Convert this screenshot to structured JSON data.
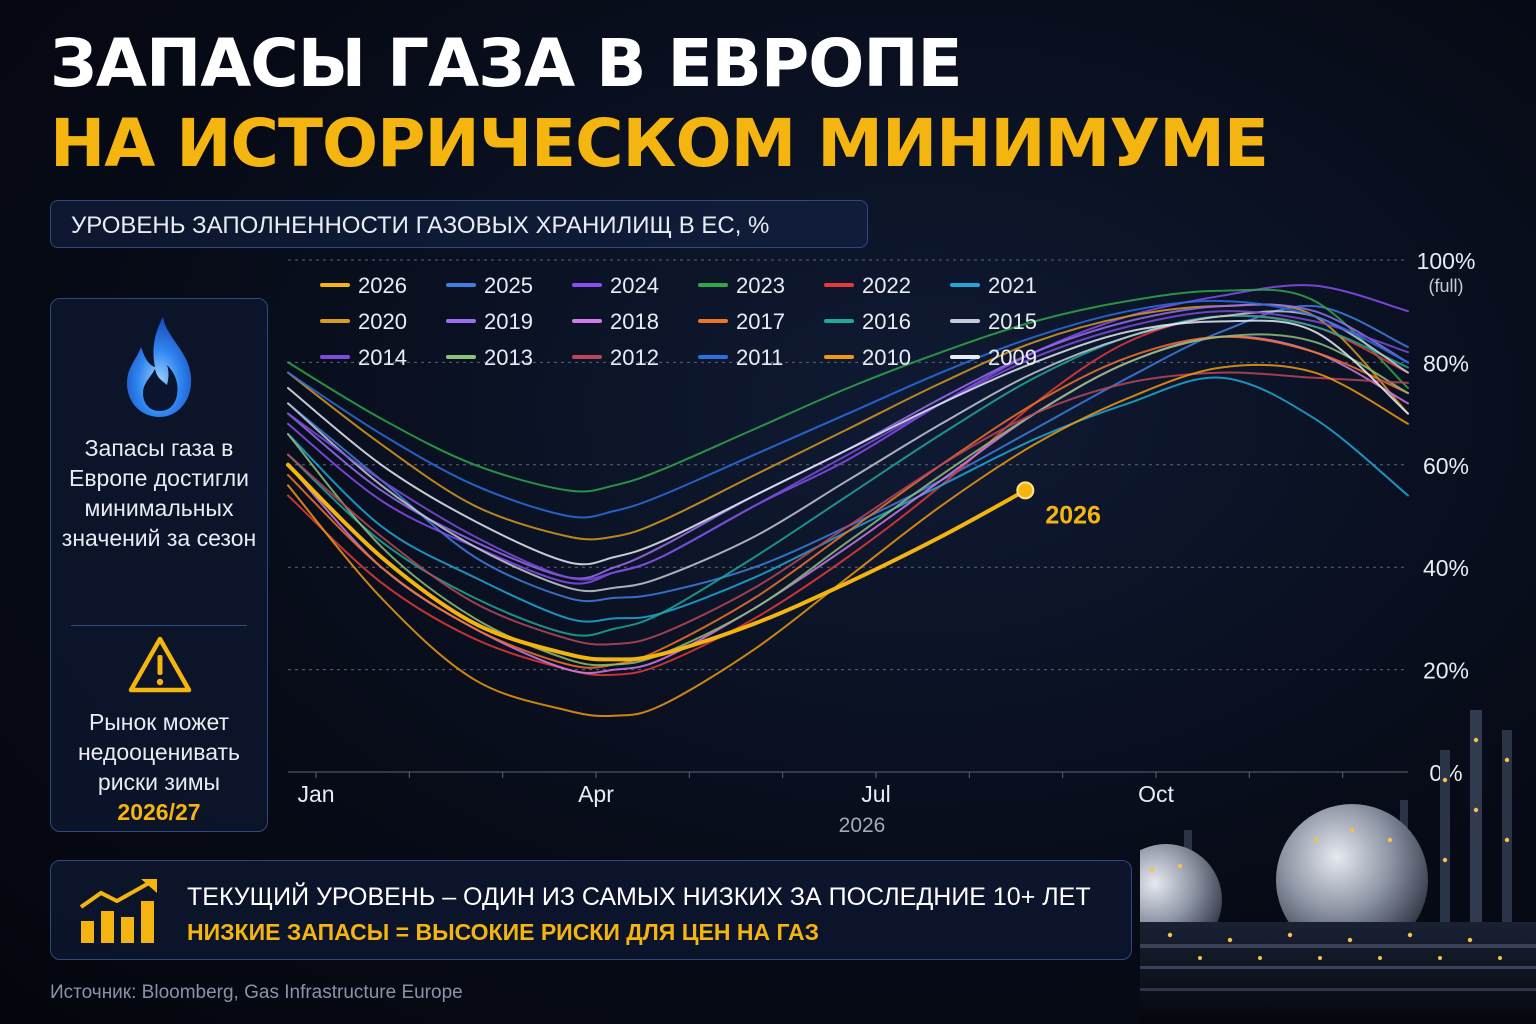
{
  "title_line1": "ЗАПАСЫ ГАЗА В ЕВРОПЕ",
  "title_line2": "НА ИСТОРИЧЕСКОМ МИНИМУМЕ",
  "subtitle": "УРОВЕНЬ ЗАПОЛНЕННОСТИ ГАЗОВЫХ ХРАНИЛИЩ В ЕС, %",
  "side_panel": {
    "icon_top": "flame-icon",
    "text_top": "Запасы газа в Европе достигли минимальных значений за сезон",
    "icon_bottom": "warning-icon",
    "text_bottom": "Рынок может недооценивать риски зимы",
    "year": "2026/27"
  },
  "bottom_box": {
    "icon": "rising-bar-chart-icon",
    "line1": "ТЕКУЩИЙ УРОВЕНЬ – ОДИН ИЗ САМЫХ НИЗКИХ ЗА ПОСЛЕДНИЕ 10+ ЛЕТ",
    "line2": "НИЗКИЕ ЗАПАСЫ = ВЫСОКИЕ РИСКИ ДЛЯ ЦЕН НА ГАЗ"
  },
  "source": "Источник: Bloomberg, Gas Infrastructure Europe",
  "colors": {
    "accent": "#f5b510",
    "background": "#070b17",
    "panel_border": "#2e4a7a"
  },
  "chart_data": {
    "type": "line",
    "x_unit": "month",
    "xlim": [
      0,
      12
    ],
    "ylim": [
      0,
      100
    ],
    "xlabel": "2026",
    "x_ticks": [
      {
        "value": 0.3,
        "label": "Jan"
      },
      {
        "value": 3.3,
        "label": "Apr"
      },
      {
        "value": 6.3,
        "label": "Jul"
      },
      {
        "value": 9.3,
        "label": "Oct"
      }
    ],
    "y_ticks": [
      {
        "value": 0,
        "label": "0%",
        "sub": ""
      },
      {
        "value": 20,
        "label": "20%",
        "sub": ""
      },
      {
        "value": 40,
        "label": "40%",
        "sub": ""
      },
      {
        "value": 60,
        "label": "60%",
        "sub": ""
      },
      {
        "value": 80,
        "label": "80%",
        "sub": ""
      },
      {
        "value": 100,
        "label": "100%",
        "sub": "(full)"
      }
    ],
    "grid": true,
    "legend_position": "top",
    "annotation": {
      "series": "2026",
      "x": 7.9,
      "y": 55,
      "label": "2026"
    },
    "series": [
      {
        "name": "2026",
        "color": "#f5b510",
        "width": 4,
        "x": [
          0,
          1,
          2,
          3,
          3.5,
          4,
          5,
          6,
          7,
          7.9
        ],
        "y": [
          60,
          42,
          29,
          23,
          22,
          23,
          29,
          37,
          46,
          55
        ]
      },
      {
        "name": "2025",
        "color": "#3d7fe0",
        "width": 2,
        "x": [
          0,
          1,
          2,
          3,
          3.5,
          4,
          5,
          6,
          7,
          8,
          9,
          10,
          11,
          12
        ],
        "y": [
          72,
          57,
          42,
          34,
          34,
          35,
          40,
          48,
          57,
          67,
          77,
          86,
          91,
          83
        ]
      },
      {
        "name": "2024",
        "color": "#8a4ef0",
        "width": 2,
        "x": [
          0,
          1,
          2,
          3,
          3.5,
          4,
          5,
          6,
          7,
          8,
          9,
          10,
          11,
          12
        ],
        "y": [
          68,
          53,
          44,
          37,
          39,
          42,
          52,
          61,
          72,
          82,
          89,
          93,
          95,
          90
        ]
      },
      {
        "name": "2023",
        "color": "#2fa84a",
        "width": 2,
        "x": [
          0,
          1,
          2,
          3,
          3.5,
          4,
          5,
          6,
          7,
          8,
          9,
          10,
          11,
          12
        ],
        "y": [
          80,
          69,
          60,
          55,
          56,
          59,
          67,
          75,
          82,
          88,
          92,
          94,
          92,
          75
        ]
      },
      {
        "name": "2022",
        "color": "#e63a3a",
        "width": 2,
        "x": [
          0,
          1,
          2,
          3,
          3.5,
          4,
          5,
          6,
          7,
          8,
          9,
          10,
          11,
          12
        ],
        "y": [
          54,
          37,
          26,
          20,
          19,
          21,
          30,
          42,
          56,
          72,
          84,
          89,
          87,
          78
        ]
      },
      {
        "name": "2021",
        "color": "#1fa8d8",
        "width": 2,
        "x": [
          0,
          1,
          2,
          3,
          3.5,
          4,
          5,
          6,
          7,
          8,
          9,
          10,
          11,
          12
        ],
        "y": [
          66,
          48,
          38,
          30,
          30,
          31,
          38,
          47,
          56,
          65,
          72,
          77,
          69,
          54
        ]
      },
      {
        "name": "2020",
        "color": "#d89a20",
        "width": 2,
        "x": [
          0,
          1,
          2,
          3,
          3.5,
          4,
          5,
          6,
          7,
          8,
          9,
          10,
          11,
          12
        ],
        "y": [
          78,
          64,
          52,
          46,
          46,
          49,
          58,
          67,
          76,
          84,
          89,
          91,
          89,
          70
        ]
      },
      {
        "name": "2019",
        "color": "#9a6ef0",
        "width": 2,
        "x": [
          0,
          1,
          2,
          3,
          3.5,
          4,
          5,
          6,
          7,
          8,
          9,
          10,
          11,
          12
        ],
        "y": [
          70,
          55,
          45,
          38,
          40,
          44,
          54,
          63,
          73,
          82,
          88,
          91,
          90,
          80
        ]
      },
      {
        "name": "2018",
        "color": "#d27ae6",
        "width": 2,
        "x": [
          0,
          1,
          2,
          3,
          3.5,
          4,
          5,
          6,
          7,
          8,
          9,
          10,
          11,
          12
        ],
        "y": [
          60,
          40,
          28,
          20,
          20,
          22,
          32,
          44,
          57,
          70,
          80,
          85,
          82,
          72
        ]
      },
      {
        "name": "2017",
        "color": "#f07428",
        "width": 2,
        "x": [
          0,
          1,
          2,
          3,
          3.5,
          4,
          5,
          6,
          7,
          8,
          9,
          10,
          11,
          12
        ],
        "y": [
          58,
          40,
          28,
          21,
          21,
          24,
          34,
          47,
          60,
          72,
          81,
          85,
          82,
          74
        ]
      },
      {
        "name": "2016",
        "color": "#1fa898",
        "width": 2,
        "x": [
          0,
          1,
          2,
          3,
          3.5,
          4,
          5,
          6,
          7,
          8,
          9,
          10,
          11,
          12
        ],
        "y": [
          62,
          45,
          34,
          27,
          28,
          31,
          42,
          54,
          66,
          77,
          85,
          89,
          87,
          79
        ]
      },
      {
        "name": "2015",
        "color": "#c6cbd6",
        "width": 2,
        "x": [
          0,
          1,
          2,
          3,
          3.5,
          4,
          5,
          6,
          7,
          8,
          9,
          10,
          11,
          12
        ],
        "y": [
          72,
          56,
          44,
          36,
          36,
          38,
          46,
          57,
          68,
          78,
          85,
          89,
          89,
          78
        ]
      },
      {
        "name": "2014",
        "color": "#7a4ed8",
        "width": 2,
        "x": [
          0,
          1,
          2,
          3,
          3.5,
          4,
          5,
          6,
          7,
          8,
          9,
          10,
          11,
          12
        ],
        "y": [
          70,
          57,
          46,
          38,
          39,
          42,
          52,
          62,
          72,
          81,
          87,
          90,
          88,
          82
        ]
      },
      {
        "name": "2013",
        "color": "#8fc07a",
        "width": 2,
        "x": [
          0,
          1,
          2,
          3,
          3.5,
          4,
          5,
          6,
          7,
          8,
          9,
          10,
          11,
          12
        ],
        "y": [
          66,
          44,
          30,
          22,
          21,
          23,
          32,
          45,
          58,
          70,
          80,
          85,
          84,
          74
        ]
      },
      {
        "name": "2012",
        "color": "#b8475a",
        "width": 2,
        "x": [
          0,
          1,
          2,
          3,
          3.5,
          4,
          5,
          6,
          7,
          8,
          9,
          10,
          11,
          12
        ],
        "y": [
          62,
          46,
          33,
          26,
          25,
          27,
          36,
          48,
          60,
          70,
          76,
          78,
          77,
          76
        ]
      },
      {
        "name": "2011",
        "color": "#2d6ee0",
        "width": 2,
        "x": [
          0,
          1,
          2,
          3,
          3.5,
          4,
          5,
          6,
          7,
          8,
          9,
          10,
          11,
          12
        ],
        "y": [
          78,
          66,
          56,
          50,
          51,
          54,
          62,
          70,
          78,
          85,
          90,
          92,
          89,
          80
        ]
      },
      {
        "name": "2010",
        "color": "#f09a10",
        "width": 2,
        "x": [
          0,
          1,
          2,
          3,
          3.5,
          4,
          5,
          6,
          7,
          8,
          9,
          10,
          11,
          12
        ],
        "y": [
          56,
          34,
          18,
          12,
          11,
          13,
          24,
          38,
          52,
          64,
          73,
          79,
          78,
          68
        ]
      },
      {
        "name": "2009",
        "color": "#e8ecf4",
        "width": 2,
        "x": [
          0,
          1,
          2,
          3,
          3.5,
          4,
          5,
          6,
          7,
          8,
          9,
          10,
          11,
          12
        ],
        "y": [
          75,
          60,
          49,
          41,
          42,
          45,
          54,
          63,
          72,
          80,
          86,
          88,
          86,
          70
        ]
      }
    ]
  }
}
